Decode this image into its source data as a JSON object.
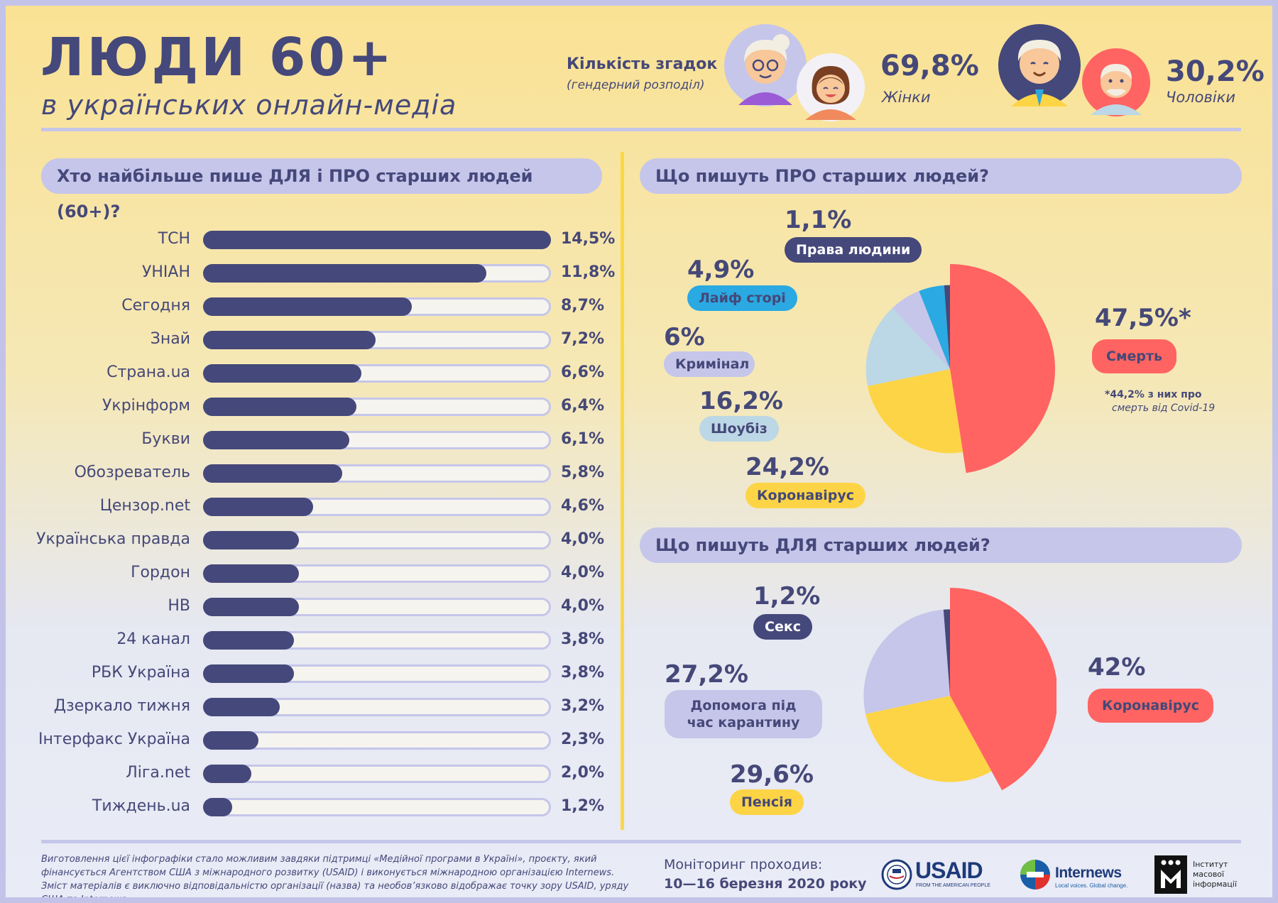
{
  "header": {
    "title": "ЛЮДИ 60+",
    "subtitle": "в українських онлайн-медіа",
    "gender_label": "Кількість згадок",
    "gender_note": "(гендерний розподіл)",
    "women_pct": "69,8%",
    "women_label": "Жінки",
    "men_pct": "30,2%",
    "men_label": "Чоловіки"
  },
  "sections": {
    "bars_title": "Хто найбільше пише ДЛЯ і ПРО старших людей (60+)?",
    "about_title": "Що пишуть ПРО старших людей?",
    "for_title": "Що пишуть ДЛЯ старших людей?"
  },
  "chart_data": [
    {
      "type": "bar",
      "orientation": "horizontal",
      "categories": [
        "ТСН",
        "УНІАН",
        "Сегодня",
        "Знай",
        "Страна.ua",
        "Укрінформ",
        "Букви",
        "Обозреватель",
        "Цензор.net",
        "Українська правда",
        "Гордон",
        "НВ",
        "24 канал",
        "РБК Україна",
        "Дзеркало тижня",
        "Інтерфакс Україна",
        "Ліга.net",
        "Тиждень.ua"
      ],
      "values": [
        14.5,
        11.8,
        8.7,
        7.2,
        6.6,
        6.4,
        6.1,
        5.8,
        4.6,
        4.0,
        4.0,
        4.0,
        3.8,
        3.8,
        3.2,
        2.3,
        2.0,
        1.2
      ],
      "value_labels": [
        "14,5%",
        "11,8%",
        "8,7%",
        "7,2%",
        "6,6%",
        "6,4%",
        "6,1%",
        "5,8%",
        "4,6%",
        "4,0%",
        "4,0%",
        "4,0%",
        "3,8%",
        "3,8%",
        "3,2%",
        "2,3%",
        "2,0%",
        "1,2%"
      ],
      "xlim": [
        0,
        14.5
      ]
    },
    {
      "type": "pie",
      "slices": [
        {
          "label": "Смерть",
          "value": 47.5,
          "value_label": "47,5%*",
          "color": "#ff6462"
        },
        {
          "label": "Коронавірус",
          "value": 24.2,
          "value_label": "24,2%",
          "color": "#fdd445"
        },
        {
          "label": "Шоубіз",
          "value": 16.2,
          "value_label": "16,2%",
          "color": "#bcd7e6"
        },
        {
          "label": "Кримінал",
          "value": 6,
          "value_label": "6%",
          "color": "#c5c6ea"
        },
        {
          "label": "Лайф сторі",
          "value": 4.9,
          "value_label": "4,9%",
          "color": "#2aa9e2"
        },
        {
          "label": "Права людини",
          "value": 1.1,
          "value_label": "1,1%",
          "color": "#45487a"
        }
      ],
      "footnote_1": "*44,2% з них про",
      "footnote_2": "смерть від Covid-19"
    },
    {
      "type": "pie",
      "slices": [
        {
          "label": "Коронавірус",
          "value": 42,
          "value_label": "42%",
          "color": "#ff6462"
        },
        {
          "label": "Пенсія",
          "value": 29.6,
          "value_label": "29,6%",
          "color": "#fdd445"
        },
        {
          "label": "Допомога під час карантину",
          "value": 27.2,
          "value_label": "27,2%",
          "color": "#c5c6ea"
        },
        {
          "label": "Секс",
          "value": 1.2,
          "value_label": "1,2%",
          "color": "#45487a"
        }
      ]
    }
  ],
  "footer": {
    "credits": "Виготовлення цієї інфографіки стало можливим завдяки підтримці «Медійної програми в Україні», проєкту, який фінансується Агентством США з міжнародного розвитку (USAID) і виконується міжнародною організацією Internews. Зміст матеріалів є виключно відповідальністю організації (назва) та необов’язково відображає точку зору USAID, уряду США та Internews.",
    "monitor_label": "Моніторинг проходив:",
    "monitor_dates": "10—16 березня 2020 року",
    "usaid_text": "USAID",
    "usaid_sub": "FROM THE AMERICAN PEOPLE",
    "internews_text": "Internews",
    "internews_sub": "Local voices. Global change.",
    "imi_line1": "Інститут",
    "imi_line2": "масової",
    "imi_line3": "інформації"
  }
}
